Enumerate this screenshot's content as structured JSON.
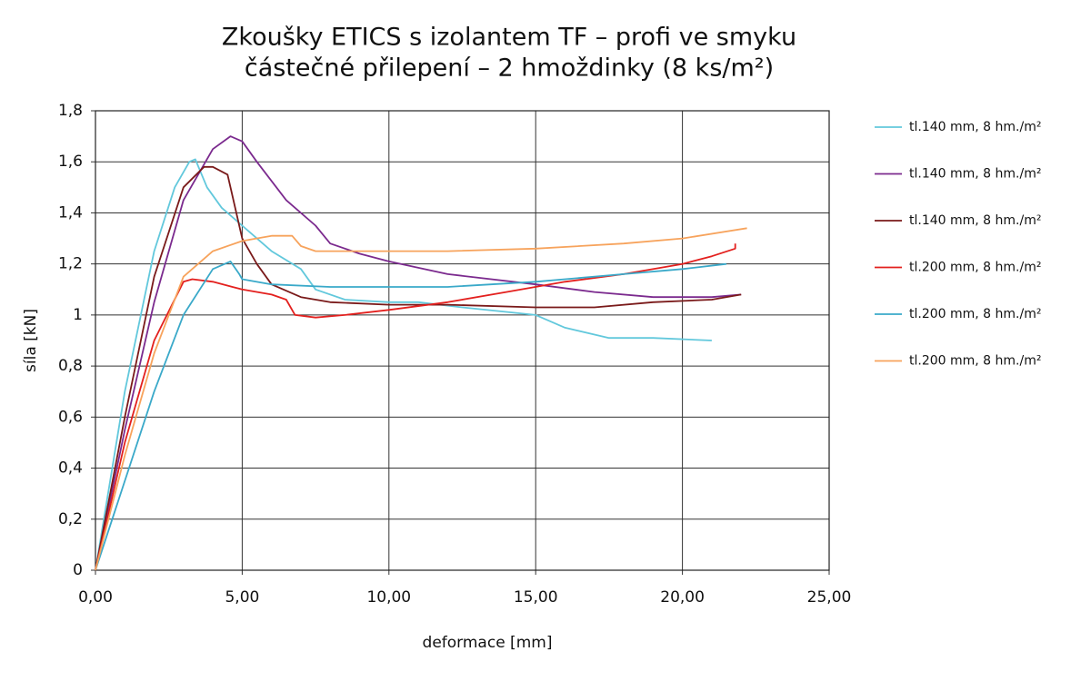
{
  "chart_data": {
    "type": "line",
    "title": [
      "Zkoušky ETICS s izolantem TF – profi ve smyku",
      "částečné přilepení – 2 hmoždinky (8 ks/m²)"
    ],
    "x_label": "deformace [mm]",
    "y_label": "síla [kN]",
    "xlim": [
      0,
      25
    ],
    "ylim": [
      0,
      1.8
    ],
    "grid": true,
    "legend": "right",
    "xticks": [
      {
        "value": 0,
        "label": "0,00"
      },
      {
        "value": 5,
        "label": "5,00"
      },
      {
        "value": 10,
        "label": "10,00"
      },
      {
        "value": 15,
        "label": "15,00"
      },
      {
        "value": 20,
        "label": "20,00"
      },
      {
        "value": 25,
        "label": "25,00"
      }
    ],
    "yticks": [
      0,
      {
        "value": 0.2,
        "label": "0,2"
      },
      {
        "value": 0.4,
        "label": "0,4"
      },
      {
        "value": 0.6,
        "label": "0,6"
      },
      {
        "value": 0.8,
        "label": "0,8"
      },
      1,
      {
        "value": 1.2,
        "label": "1,2"
      },
      {
        "value": 1.4,
        "label": "1,4"
      },
      {
        "value": 1.6,
        "label": "1,6"
      },
      {
        "value": 1.8,
        "label": "1,8"
      }
    ],
    "series": [
      {
        "name": "tl.140 mm, 8 hm./m²",
        "color": "#62c8dc",
        "x": [
          0,
          1,
          2,
          2.7,
          3.2,
          3.4,
          3.8,
          4.3,
          5,
          6,
          7,
          7.5,
          8.5,
          10,
          11,
          12.5,
          15,
          16,
          17.5,
          19,
          21
        ],
        "values": [
          0,
          0.7,
          1.25,
          1.5,
          1.6,
          1.61,
          1.5,
          1.42,
          1.35,
          1.25,
          1.18,
          1.1,
          1.06,
          1.05,
          1.05,
          1.03,
          1.0,
          0.95,
          0.91,
          0.91,
          0.9
        ]
      },
      {
        "name": "tl.140 mm, 8 hm./m²",
        "color": "#7b2a8e",
        "x": [
          0,
          1,
          2,
          3,
          4,
          4.6,
          5,
          5.5,
          6.5,
          7.5,
          8,
          9,
          10,
          12,
          15,
          17,
          19,
          21,
          22
        ],
        "values": [
          0,
          0.55,
          1.05,
          1.45,
          1.65,
          1.7,
          1.68,
          1.6,
          1.45,
          1.35,
          1.28,
          1.24,
          1.21,
          1.16,
          1.12,
          1.09,
          1.07,
          1.07,
          1.08
        ]
      },
      {
        "name": "tl.140 mm, 8 hm./m²",
        "color": "#7a1a1a",
        "x": [
          0,
          1,
          2,
          3,
          3.7,
          4,
          4.5,
          5,
          5.5,
          6,
          7,
          8,
          10,
          12,
          15,
          17,
          19,
          21,
          22
        ],
        "values": [
          0,
          0.6,
          1.15,
          1.5,
          1.58,
          1.58,
          1.55,
          1.3,
          1.2,
          1.12,
          1.07,
          1.05,
          1.04,
          1.04,
          1.03,
          1.03,
          1.05,
          1.06,
          1.08
        ]
      },
      {
        "name": "tl.200 mm, 8 hm./m²",
        "color": "#e3201e",
        "x": [
          0,
          1,
          2,
          3,
          3.3,
          4,
          5,
          6,
          6.5,
          6.8,
          7.5,
          8.5,
          10,
          12,
          14,
          16,
          18,
          20,
          21,
          21.8,
          21.8
        ],
        "values": [
          0,
          0.5,
          0.9,
          1.13,
          1.14,
          1.13,
          1.1,
          1.08,
          1.06,
          1.0,
          0.99,
          1.0,
          1.02,
          1.05,
          1.09,
          1.13,
          1.16,
          1.2,
          1.23,
          1.26,
          1.28
        ]
      },
      {
        "name": "tl.200 mm, 8 hm./m²",
        "color": "#3aa9c9",
        "x": [
          0,
          1,
          2,
          3,
          4,
          4.6,
          4.9,
          5,
          6,
          8,
          10,
          12,
          15,
          18,
          20,
          21.5
        ],
        "values": [
          0,
          0.35,
          0.7,
          1.0,
          1.18,
          1.21,
          1.16,
          1.14,
          1.12,
          1.11,
          1.11,
          1.11,
          1.13,
          1.16,
          1.18,
          1.2
        ]
      },
      {
        "name": "tl.200 mm, 8 hm./m²",
        "color": "#f7a35c",
        "x": [
          0,
          1,
          2,
          3,
          4,
          5,
          6,
          6.7,
          7,
          7.5,
          8.5,
          10,
          12,
          15,
          18,
          20,
          22.2
        ],
        "values": [
          0,
          0.45,
          0.85,
          1.15,
          1.25,
          1.29,
          1.31,
          1.31,
          1.27,
          1.25,
          1.25,
          1.25,
          1.25,
          1.26,
          1.28,
          1.3,
          1.34
        ]
      }
    ]
  }
}
